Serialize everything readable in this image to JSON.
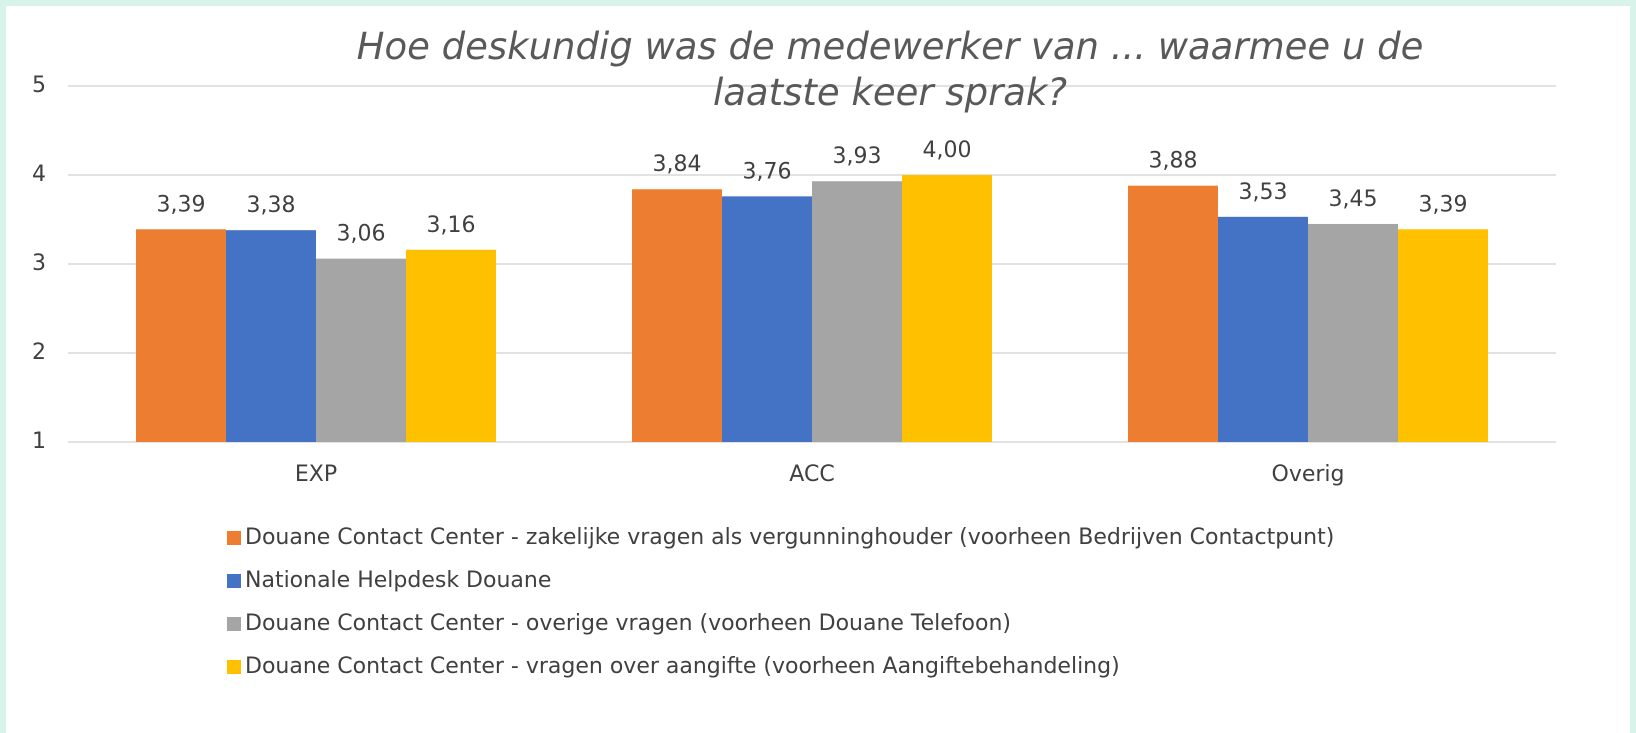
{
  "chart_data": {
    "type": "bar",
    "title": "Hoe deskundig was de medewerker van ... waarmee u de laatste keer sprak?",
    "categories": [
      "EXP",
      "ACC",
      "Overig"
    ],
    "series": [
      {
        "name": "Douane Contact Center - zakelijke vragen als vergunninghouder (voorheen Bedrijven Contactpunt)",
        "color": "#ED7D31",
        "values": [
          3.39,
          3.84,
          3.88
        ],
        "value_labels": [
          "3,39",
          "3,84",
          "3,88"
        ]
      },
      {
        "name": "Nationale Helpdesk Douane",
        "color": "#4472C4",
        "values": [
          3.38,
          3.76,
          3.53
        ],
        "value_labels": [
          "3,38",
          "3,76",
          "3,53"
        ]
      },
      {
        "name": "Douane Contact Center - overige vragen (voorheen Douane Telefoon)",
        "color": "#A5A5A5",
        "values": [
          3.06,
          3.93,
          3.45
        ],
        "value_labels": [
          "3,06",
          "3,93",
          "3,45"
        ]
      },
      {
        "name": "Douane Contact Center - vragen over aangifte (voorheen Aangiftebehandeling)",
        "color": "#FFC000",
        "values": [
          3.16,
          4.0,
          3.39
        ],
        "value_labels": [
          "3,16",
          "4,00",
          "3,39"
        ]
      }
    ],
    "ylim": [
      1,
      5
    ],
    "yticks": [
      1,
      2,
      3,
      4,
      5
    ],
    "grid": true,
    "legend": "bottom"
  }
}
